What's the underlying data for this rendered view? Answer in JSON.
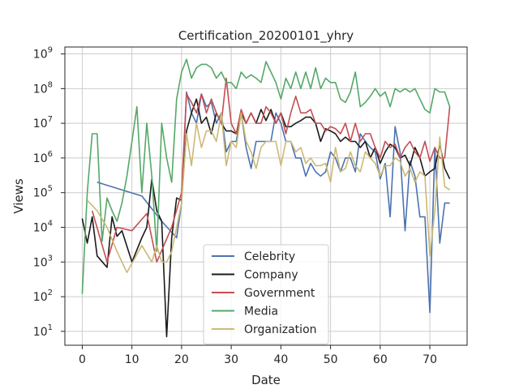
{
  "chart_data": {
    "type": "line",
    "title": "Certification_20200101_yhry",
    "xlabel": "Date",
    "ylabel": "Views",
    "xlim": [
      -3.5,
      77.5
    ],
    "ylim_log10": [
      0.6,
      9.2
    ],
    "y_scale": "log",
    "x_ticks": [
      0,
      10,
      20,
      30,
      40,
      50,
      60,
      70
    ],
    "y_ticks": [
      {
        "exp": 1,
        "base": "10",
        "sup": "1"
      },
      {
        "exp": 2,
        "base": "10",
        "sup": "2"
      },
      {
        "exp": 3,
        "base": "10",
        "sup": "3"
      },
      {
        "exp": 4,
        "base": "10",
        "sup": "4"
      },
      {
        "exp": 5,
        "base": "10",
        "sup": "5"
      },
      {
        "exp": 6,
        "base": "10",
        "sup": "6"
      },
      {
        "exp": 7,
        "base": "10",
        "sup": "7"
      },
      {
        "exp": 8,
        "base": "10",
        "sup": "8"
      },
      {
        "exp": 9,
        "base": "10",
        "sup": "9"
      }
    ],
    "grid": true,
    "legend_position": "bottom-center",
    "series": [
      {
        "name": "Celebrity",
        "color": "#4c72b0",
        "x": [
          3,
          12,
          16,
          19,
          20,
          21,
          22,
          23,
          24,
          25,
          26,
          27,
          28,
          29,
          30,
          31,
          32,
          33,
          34,
          35,
          36,
          37,
          38,
          39,
          40,
          41,
          42,
          43,
          44,
          45,
          46,
          47,
          48,
          49,
          50,
          51,
          52,
          53,
          54,
          55,
          56,
          57,
          58,
          59,
          60,
          61,
          62,
          63,
          64,
          65,
          66,
          67,
          68,
          69,
          70,
          71,
          72,
          73,
          74
        ],
        "y": [
          200000,
          80000,
          15000,
          5000,
          50000,
          80000000,
          20000000,
          10000000,
          70000000,
          30000000,
          40000000,
          10000000,
          20000000,
          1500000,
          3000000,
          3000000,
          20000000,
          2000000,
          500000,
          3000000,
          3000000,
          3000000,
          3000000,
          20000000,
          10000000,
          3000000,
          3000000,
          1000000,
          1000000,
          300000,
          700000,
          400000,
          300000,
          400000,
          1500000,
          1000000,
          400000,
          1000000,
          1000000,
          400000,
          5000000,
          3000000,
          2000000,
          1500000,
          250000,
          700000,
          20000,
          8000000,
          1500000,
          8000,
          800000,
          300000,
          20000,
          20000,
          35,
          2000000,
          3500,
          50000,
          50000
        ]
      },
      {
        "name": "Company",
        "color": "#1a1a1a",
        "x": [
          0,
          1,
          2,
          3,
          5,
          6,
          7,
          8,
          10,
          12,
          13,
          14,
          15,
          16,
          17,
          18,
          19,
          20,
          21,
          22,
          23,
          24,
          25,
          26,
          27,
          28,
          29,
          30,
          31,
          32,
          33,
          34,
          35,
          36,
          37,
          38,
          39,
          40,
          41,
          42,
          43,
          44,
          45,
          46,
          47,
          48,
          49,
          50,
          51,
          52,
          53,
          54,
          55,
          56,
          57,
          58,
          59,
          60,
          61,
          62,
          63,
          64,
          65,
          66,
          67,
          68,
          69,
          70,
          71,
          72,
          73,
          74
        ],
        "y": [
          18000,
          3500,
          20000,
          1500,
          700,
          20000,
          5500,
          8000,
          1000,
          5000,
          10000,
          250000,
          30000,
          15000,
          7,
          5000,
          70000,
          60000,
          6000000,
          20000000,
          50000000,
          10000000,
          15000000,
          5000000,
          20000000,
          10000000,
          6000000,
          6000000,
          5000000,
          20000000,
          10000000,
          20000000,
          10000000,
          25000000,
          12000000,
          25000000,
          10000000,
          20000000,
          8000000,
          8000000,
          10000000,
          12000000,
          15000000,
          15000000,
          10000000,
          3000000,
          7000000,
          6000000,
          5000000,
          3000000,
          4000000,
          3000000,
          3000000,
          2000000,
          3000000,
          1000000,
          2000000,
          700000,
          1500000,
          2500000,
          2000000,
          1000000,
          1200000,
          600000,
          2000000,
          1000000,
          300000,
          400000,
          500000,
          2500000,
          500000,
          250000
        ]
      },
      {
        "name": "Government",
        "color": "#c44e52",
        "x": [
          2,
          5,
          7,
          10,
          13,
          15,
          18,
          20,
          21,
          22,
          23,
          24,
          25,
          26,
          27,
          28,
          29,
          30,
          31,
          32,
          33,
          34,
          35,
          36,
          37,
          38,
          39,
          40,
          41,
          42,
          43,
          44,
          45,
          46,
          47,
          48,
          49,
          50,
          51,
          52,
          53,
          54,
          55,
          56,
          57,
          58,
          59,
          60,
          61,
          62,
          63,
          64,
          65,
          66,
          67,
          68,
          69,
          70,
          71,
          72,
          73,
          74
        ],
        "y": [
          30000,
          1000,
          10000,
          8000,
          25000,
          1000,
          10000,
          100000,
          70000000,
          40000000,
          20000000,
          70000000,
          20000000,
          50000000,
          20000000,
          10000000,
          200000000,
          10000000,
          5000000,
          25000000,
          10000000,
          20000000,
          10000000,
          10000000,
          30000000,
          20000000,
          10000000,
          20000000,
          5000000,
          20000000,
          60000000,
          20000000,
          20000000,
          25000000,
          10000000,
          10000000,
          6000000,
          8000000,
          7000000,
          5000000,
          10000000,
          3000000,
          10000000,
          3000000,
          5000000,
          5000000,
          2000000,
          1000000,
          3000000,
          2000000,
          2500000,
          1000000,
          2000000,
          3000000,
          1500000,
          1000000,
          3000000,
          800000,
          2000000,
          1000000,
          1000000,
          30000000
        ]
      },
      {
        "name": "Media",
        "color": "#55a868",
        "x": [
          0,
          1,
          2,
          3,
          4,
          5,
          6,
          7,
          8,
          9,
          10,
          11,
          12,
          13,
          14,
          15,
          16,
          17,
          18,
          19,
          20,
          21,
          22,
          23,
          24,
          25,
          26,
          27,
          28,
          29,
          30,
          31,
          32,
          33,
          34,
          35,
          36,
          37,
          38,
          39,
          40,
          41,
          42,
          43,
          44,
          45,
          46,
          47,
          48,
          49,
          50,
          51,
          52,
          53,
          54,
          55,
          56,
          57,
          58,
          59,
          60,
          61,
          62,
          63,
          64,
          65,
          66,
          67,
          68,
          69,
          70,
          71,
          72,
          73,
          74
        ],
        "y": [
          120,
          100000,
          5000000,
          5000000,
          4000,
          70000,
          30000,
          15000,
          50000,
          300000,
          3000000,
          30000000,
          100000,
          10000000,
          300000,
          2000,
          10000000,
          1000000,
          200000,
          50000000,
          300000000,
          700000000,
          200000000,
          400000000,
          500000000,
          500000000,
          400000000,
          200000000,
          300000000,
          150000000,
          150000000,
          100000000,
          300000000,
          200000000,
          250000000,
          200000000,
          150000000,
          600000000,
          300000000,
          150000000,
          50000000,
          200000000,
          100000000,
          300000000,
          100000000,
          300000000,
          100000000,
          400000000,
          100000000,
          200000000,
          150000000,
          150000000,
          50000000,
          40000000,
          80000000,
          300000000,
          30000000,
          40000000,
          60000000,
          100000000,
          60000000,
          80000000,
          30000000,
          100000000,
          80000000,
          100000000,
          80000000,
          100000000,
          50000000,
          25000000,
          20000000,
          100000000,
          80000000,
          80000000,
          30000000
        ]
      },
      {
        "name": "Organization",
        "color": "#ccb974",
        "x": [
          1,
          3,
          5,
          7,
          9,
          12,
          14,
          15,
          16,
          17,
          18,
          19,
          20,
          21,
          22,
          23,
          24,
          25,
          26,
          27,
          28,
          29,
          30,
          31,
          32,
          33,
          34,
          35,
          36,
          37,
          38,
          39,
          40,
          41,
          42,
          43,
          44,
          45,
          46,
          47,
          48,
          49,
          50,
          51,
          52,
          53,
          54,
          55,
          56,
          57,
          58,
          59,
          60,
          61,
          62,
          63,
          64,
          65,
          66,
          67,
          68,
          69,
          70,
          71,
          72,
          73,
          74
        ],
        "y": [
          60000,
          30000,
          10000,
          2000,
          500,
          3000,
          1000,
          3000,
          1000,
          1000,
          2000,
          10000,
          50000,
          5000000,
          600000,
          10000000,
          2000000,
          6000000,
          6000000,
          3000000,
          20000000,
          600000,
          3000000,
          2000000,
          20000000,
          3000000,
          1500000,
          500000,
          2000000,
          3000000,
          3000000,
          3000000,
          600000,
          3000000,
          3000000,
          1500000,
          2000000,
          700000,
          1000000,
          600000,
          600000,
          700000,
          200000,
          2000000,
          400000,
          500000,
          1500000,
          600000,
          400000,
          1500000,
          1000000,
          700000,
          300000,
          600000,
          600000,
          1000000,
          800000,
          300000,
          500000,
          200000,
          400000,
          300000,
          1500,
          30000,
          4000000,
          150000,
          120000
        ]
      }
    ]
  }
}
